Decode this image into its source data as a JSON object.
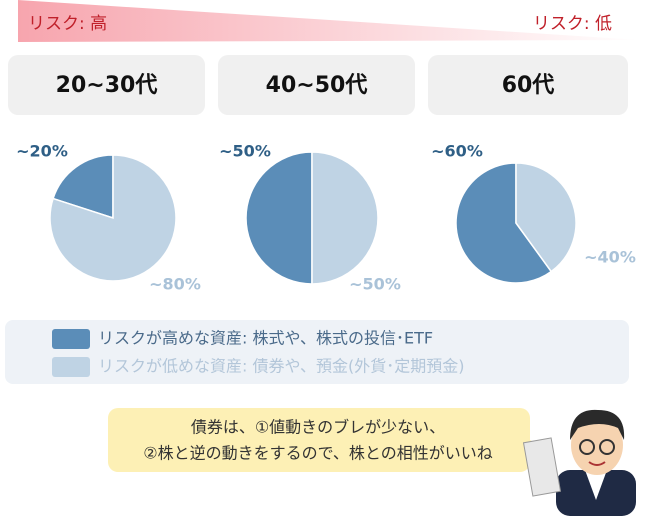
{
  "risk_high": "リスク: 高",
  "risk_low": "リスク: 低",
  "chart_data": [
    {
      "type": "pie",
      "title": "20~30代",
      "values": [
        20,
        80
      ],
      "value_labels": [
        "~20%",
        "~80%"
      ]
    },
    {
      "type": "pie",
      "title": "40~50代",
      "values": [
        50,
        50
      ],
      "value_labels": [
        "~50%",
        "~50%"
      ]
    },
    {
      "type": "pie",
      "title": "60代",
      "values": [
        60,
        40
      ],
      "value_labels": [
        "~60%",
        "~40%"
      ]
    }
  ],
  "legend": [
    {
      "name": "リスクが高めな資産: 株式や、株式の投信･ETF",
      "color": "#5b8db8"
    },
    {
      "name": "リスクが低めな資産: 債券や、預金(外貨･定期預金)",
      "color": "#bfd3e4"
    }
  ],
  "bubble": [
    "債券は、①値動きのブレが少ない、",
    "②株と逆の動きをするので、株との相性がいいね"
  ]
}
